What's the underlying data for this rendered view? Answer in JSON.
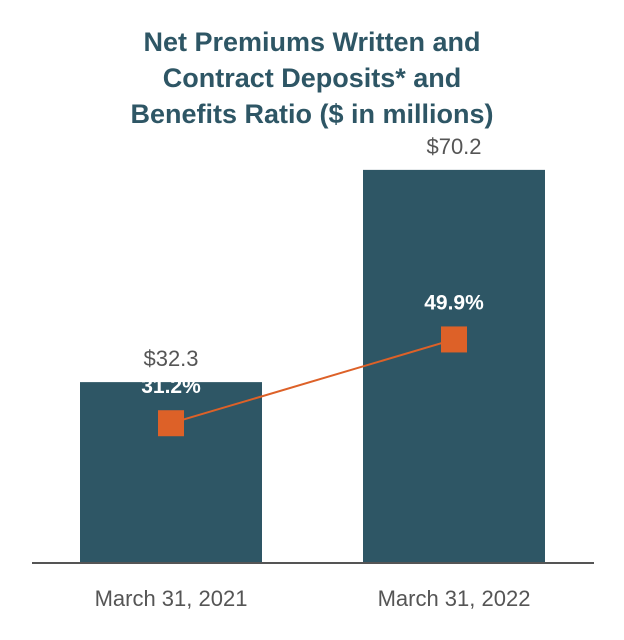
{
  "chart_data": {
    "type": "bar",
    "title_lines": [
      "Net Premiums Written and",
      "Contract Deposits* and",
      "Benefits Ratio ($ in millions)"
    ],
    "categories": [
      "March 31, 2021",
      "March 31, 2022"
    ],
    "series": [
      {
        "type": "bar",
        "values": [
          32.3,
          70.2
        ],
        "labels": [
          "$32.3",
          "$70.2"
        ],
        "color": "#2e5665"
      },
      {
        "type": "line",
        "values": [
          31.2,
          49.9
        ],
        "labels": [
          "31.2%",
          "49.9%"
        ],
        "color": "#dd6128"
      }
    ],
    "ylim_bar": [
      0,
      80
    ],
    "ylim_line": [
      0,
      100
    ],
    "grid": false,
    "legend": "none"
  }
}
